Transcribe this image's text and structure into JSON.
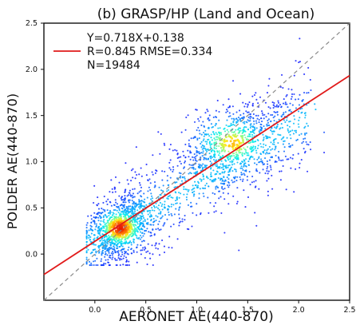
{
  "chart_data": {
    "type": "scatter",
    "title": "(b) GRASP/HP (Land and Ocean)",
    "xlabel": "AERONET AE(440-870)",
    "ylabel": "POLDER AE(440-870)",
    "xlim": [
      -0.5,
      2.5
    ],
    "ylim": [
      -0.5,
      2.5
    ],
    "grid": false,
    "x_ticks": [
      {
        "label": "0.0",
        "value": 0.0
      },
      {
        "label": "0.5",
        "value": 0.5
      },
      {
        "label": "1.0",
        "value": 1.0
      },
      {
        "label": "1.5",
        "value": 1.5
      },
      {
        "label": "2.0",
        "value": 2.0
      },
      {
        "label": "2.5",
        "value": 2.5
      }
    ],
    "y_ticks": [
      {
        "label": "0.0",
        "value": 0.0
      },
      {
        "label": "0.5",
        "value": 0.5
      },
      {
        "label": "1.0",
        "value": 1.0
      },
      {
        "label": "1.5",
        "value": 1.5
      },
      {
        "label": "2.0",
        "value": 2.0
      },
      {
        "label": "2.5",
        "value": 2.5
      }
    ],
    "regression": {
      "slope": 0.718,
      "intercept": 0.138,
      "color": "#e11a1a"
    },
    "one_to_one_line": {
      "style": "dashed",
      "color": "#8a8a8a"
    },
    "stats": {
      "equation": "Y=0.718X+0.138",
      "r_rmse": "R=0.845  RMSE=0.334",
      "n": "N=19484"
    },
    "density_centers": [
      {
        "x": 0.25,
        "y": 0.28,
        "weight": 1.0
      },
      {
        "x": 1.35,
        "y": 1.2,
        "weight": 0.75
      }
    ],
    "series": [
      {
        "values": "density scatter cloud of 19484 points"
      }
    ],
    "colors": {
      "low_density": "#1420ff",
      "mid_density": "#00e5ff",
      "high_density": "#ff2a00"
    }
  }
}
